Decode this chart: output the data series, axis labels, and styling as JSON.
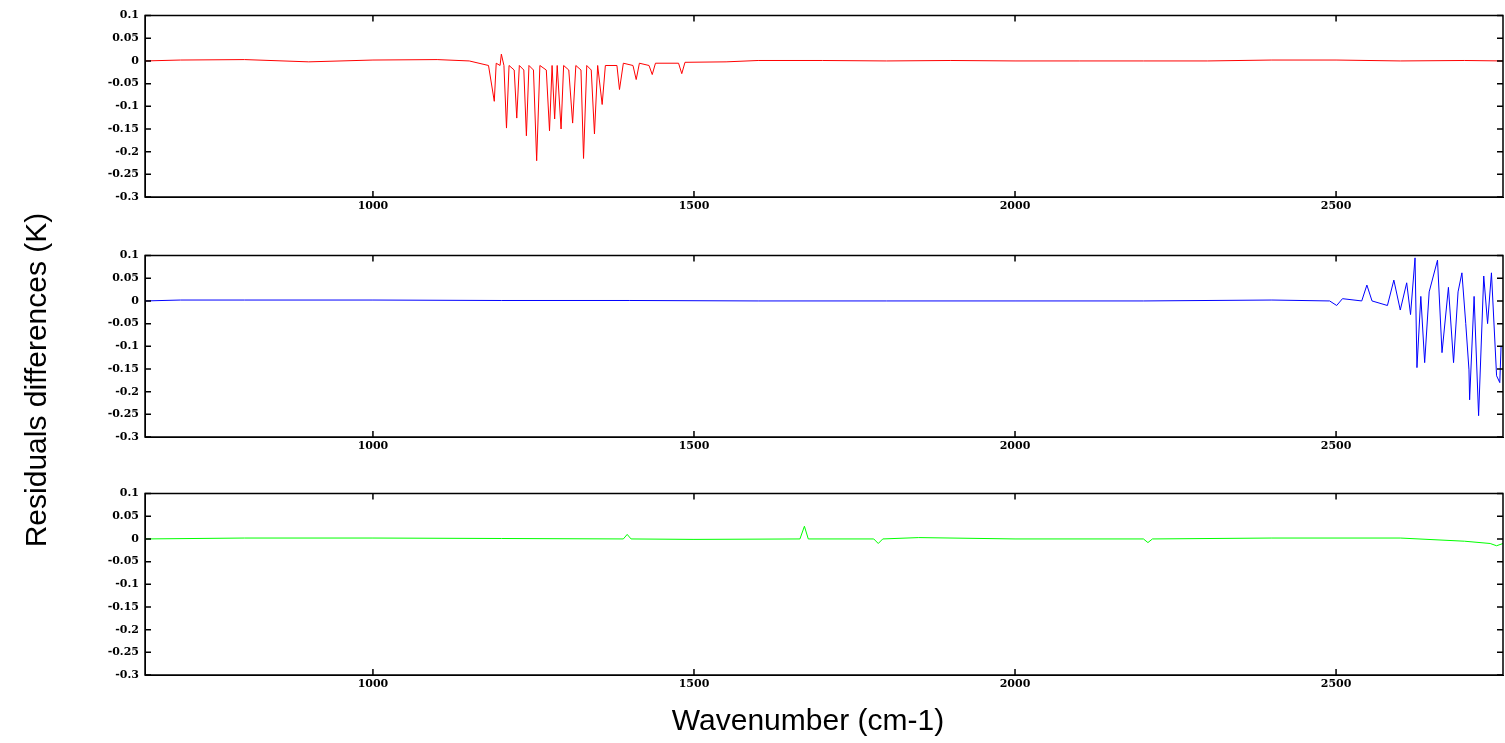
{
  "chart_data": [
    {
      "type": "line",
      "x": [
        645,
        700,
        800,
        900,
        1000,
        1100,
        1150,
        1180,
        1189,
        1192,
        1198,
        1200,
        1204,
        1208,
        1212,
        1220,
        1224,
        1228,
        1235,
        1239,
        1243,
        1250,
        1255,
        1260,
        1270,
        1275,
        1279,
        1283,
        1287,
        1293,
        1297,
        1305,
        1311,
        1316,
        1324,
        1328,
        1333,
        1340,
        1345,
        1350,
        1357,
        1362,
        1380,
        1384,
        1390,
        1405,
        1410,
        1415,
        1430,
        1435,
        1440,
        1476,
        1481,
        1486,
        1550,
        1600,
        1700,
        1800,
        1900,
        2000,
        2100,
        2200,
        2300,
        2400,
        2500,
        2600,
        2700,
        2760
      ],
      "series": [
        {
          "color": "#ff0000",
          "values": [
            0,
            0.002,
            0.003,
            -0.002,
            0.002,
            0.003,
            0,
            -0.01,
            -0.089,
            -0.005,
            -0.01,
            0.015,
            -0.01,
            -0.148,
            -0.01,
            -0.02,
            -0.126,
            -0.01,
            -0.02,
            -0.165,
            -0.01,
            -0.02,
            -0.22,
            -0.01,
            -0.02,
            -0.154,
            -0.01,
            -0.128,
            -0.01,
            -0.15,
            -0.01,
            -0.02,
            -0.137,
            -0.01,
            -0.02,
            -0.215,
            -0.01,
            -0.02,
            -0.161,
            -0.01,
            -0.096,
            -0.01,
            -0.01,
            -0.063,
            -0.005,
            -0.01,
            -0.041,
            -0.005,
            -0.01,
            -0.03,
            -0.005,
            -0.005,
            -0.028,
            -0.003,
            -0.002,
            0.001,
            0.001,
            0,
            0.001,
            0,
            0,
            0,
            0,
            0.002,
            0.002,
            0,
            0.001,
            0
          ]
        }
      ],
      "xlim": [
        645,
        2760
      ],
      "xticks": [
        1000,
        1500,
        2000,
        2500
      ],
      "ylim": [
        -0.3,
        0.1
      ],
      "yticks": [
        0.1,
        0.05,
        0,
        -0.05,
        -0.1,
        -0.15,
        -0.2,
        -0.25,
        -0.3
      ],
      "grid": false,
      "legend": false
    },
    {
      "type": "line",
      "ylabel": "Residuals differences (K)",
      "x": [
        645,
        700,
        800,
        1000,
        1200,
        1400,
        1600,
        1800,
        2000,
        2200,
        2400,
        2490,
        2501,
        2510,
        2540,
        2548,
        2556,
        2580,
        2590,
        2600,
        2610,
        2616,
        2623,
        2626,
        2632,
        2638,
        2645,
        2658,
        2665,
        2675,
        2683,
        2690,
        2696,
        2702,
        2707,
        2708,
        2715,
        2722,
        2730,
        2736,
        2742,
        2750,
        2755,
        2757
      ],
      "series": [
        {
          "color": "#0000ff",
          "values": [
            0,
            0.002,
            0.002,
            0.002,
            0.001,
            0.001,
            0,
            0,
            0,
            0,
            0.002,
            0,
            -0.01,
            0.005,
            0,
            0.035,
            0,
            -0.01,
            0.046,
            -0.02,
            0.04,
            -0.03,
            0.095,
            -0.147,
            0.01,
            -0.136,
            0.02,
            0.09,
            -0.114,
            0.03,
            -0.136,
            0.02,
            0.062,
            -0.05,
            -0.152,
            -0.218,
            0.01,
            -0.253,
            0.055,
            -0.05,
            0.062,
            -0.165,
            -0.18,
            -0.1
          ]
        }
      ],
      "xlim": [
        645,
        2760
      ],
      "xticks": [
        1000,
        1500,
        2000,
        2500
      ],
      "ylim": [
        -0.3,
        0.1
      ],
      "yticks": [
        0.1,
        0.05,
        0,
        -0.05,
        -0.1,
        -0.15,
        -0.2,
        -0.25,
        -0.3
      ],
      "grid": false,
      "legend": false
    },
    {
      "type": "line",
      "xlabel": "Wavenumber (cm-1)",
      "x": [
        645,
        800,
        1000,
        1200,
        1390,
        1396,
        1402,
        1500,
        1665,
        1672,
        1678,
        1780,
        1787,
        1794,
        1850,
        2000,
        2200,
        2207,
        2214,
        2400,
        2600,
        2700,
        2740,
        2750,
        2760
      ],
      "series": [
        {
          "color": "#00ff00",
          "values": [
            0,
            0.002,
            0.002,
            0.001,
            0,
            0.01,
            0,
            -0.001,
            0,
            0.028,
            0,
            0,
            -0.01,
            0,
            0.003,
            0,
            0,
            -0.008,
            0,
            0.002,
            0.002,
            -0.005,
            -0.01,
            -0.015,
            -0.01
          ]
        }
      ],
      "xlim": [
        645,
        2760
      ],
      "xticks": [
        1000,
        1500,
        2000,
        2500
      ],
      "ylim": [
        -0.3,
        0.1
      ],
      "yticks": [
        0.1,
        0.05,
        0,
        -0.05,
        -0.1,
        -0.15,
        -0.2,
        -0.25,
        -0.3
      ],
      "grid": false,
      "legend": false
    }
  ]
}
